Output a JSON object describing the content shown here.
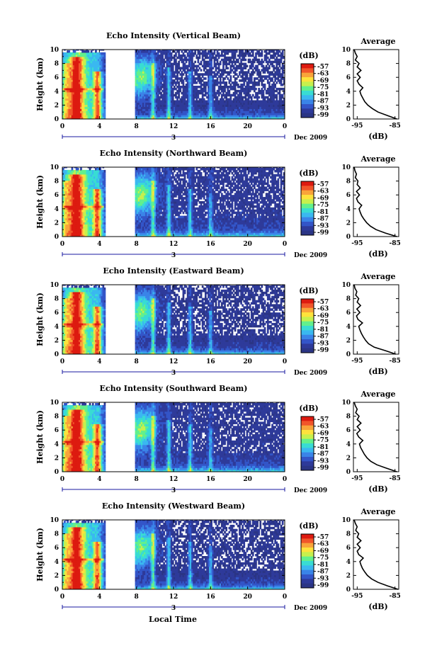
{
  "figure": {
    "xlabel": "Local Time",
    "ylabel": "Height (km)",
    "date_label": "Dec 2009",
    "day_label": "3",
    "avg_title": "Average",
    "avg_xlabel": "(dB)",
    "cbar_title": "(dB)"
  },
  "chart_data": [
    {
      "type": "heatmap",
      "title": "Echo Intensity (Vertical Beam)",
      "xlabel": "",
      "ylabel": "Height (km)",
      "x_ticks": [
        "0",
        "4",
        "8",
        "12",
        "16",
        "20",
        "0"
      ],
      "y_ticks": [
        "0",
        "2",
        "4",
        "6",
        "8",
        "10"
      ],
      "xlim": [
        0,
        24
      ],
      "ylim": [
        0,
        10
      ],
      "colorbar": {
        "label": "(dB)",
        "ticks": [
          "-57",
          "-63",
          "-69",
          "-75",
          "-81",
          "-87",
          "-93",
          "-99"
        ]
      },
      "data_gap_hours": [
        4.5,
        7.8
      ],
      "average_profile": {
        "title": "Average",
        "xlabel": "(dB)",
        "x_ticks": [
          "-95",
          "-85"
        ],
        "xlim": [
          -96,
          -84
        ],
        "ylim": [
          0,
          10
        ],
        "height_km": [
          0,
          0.5,
          1,
          1.5,
          2,
          2.5,
          3,
          3.5,
          4,
          4.5,
          5,
          5.5,
          6,
          6.5,
          7,
          7.5,
          8,
          8.5,
          9,
          9.5,
          10
        ],
        "intensity_db": [
          -84.5,
          -87,
          -89.5,
          -91,
          -92.2,
          -93,
          -93.5,
          -94,
          -94.3,
          -93.5,
          -94.5,
          -95,
          -94.2,
          -95,
          -94,
          -95,
          -94.5,
          -95.5,
          -95,
          -95.5,
          -95.8
        ]
      }
    },
    {
      "type": "heatmap",
      "title": "Echo Intensity (Northward Beam)",
      "xlabel": "",
      "ylabel": "Height (km)",
      "x_ticks": [
        "0",
        "4",
        "8",
        "12",
        "16",
        "20",
        "0"
      ],
      "y_ticks": [
        "0",
        "2",
        "4",
        "6",
        "8",
        "10"
      ],
      "xlim": [
        0,
        24
      ],
      "ylim": [
        0,
        10
      ],
      "colorbar": {
        "label": "(dB)",
        "ticks": [
          "-57",
          "-63",
          "-69",
          "-75",
          "-81",
          "-87",
          "-93",
          "-99"
        ]
      },
      "data_gap_hours": [
        4.5,
        7.8
      ],
      "average_profile": {
        "title": "Average",
        "xlabel": "(dB)",
        "x_ticks": [
          "-95",
          "-85"
        ],
        "xlim": [
          -96,
          -84
        ],
        "ylim": [
          0,
          10
        ],
        "height_km": [
          0,
          0.5,
          1,
          1.5,
          2,
          2.5,
          3,
          3.5,
          4,
          4.5,
          5,
          5.5,
          6,
          6.5,
          7,
          7.5,
          8,
          8.5,
          9,
          9.5,
          10
        ],
        "intensity_db": [
          -84.5,
          -87.5,
          -90,
          -91.5,
          -92.5,
          -93.2,
          -93.8,
          -94.2,
          -94.5,
          -93.8,
          -94.8,
          -95.2,
          -94.4,
          -95.2,
          -94.2,
          -95,
          -94.8,
          -95.5,
          -95.2,
          -95.6,
          -95.8
        ]
      }
    },
    {
      "type": "heatmap",
      "title": "Echo Intensity (Eastward Beam)",
      "xlabel": "",
      "ylabel": "Height (km)",
      "x_ticks": [
        "0",
        "4",
        "8",
        "12",
        "16",
        "20",
        "0"
      ],
      "y_ticks": [
        "0",
        "2",
        "4",
        "6",
        "8",
        "10"
      ],
      "xlim": [
        0,
        24
      ],
      "ylim": [
        0,
        10
      ],
      "colorbar": {
        "label": "(dB)",
        "ticks": [
          "-57",
          "-63",
          "-69",
          "-75",
          "-81",
          "-87",
          "-93",
          "-99"
        ]
      },
      "data_gap_hours": [
        4.5,
        7.8
      ],
      "average_profile": {
        "title": "Average",
        "xlabel": "(dB)",
        "x_ticks": [
          "-95",
          "-85"
        ],
        "xlim": [
          -96,
          -84
        ],
        "ylim": [
          0,
          10
        ],
        "height_km": [
          0,
          0.5,
          1,
          1.5,
          2,
          2.5,
          3,
          3.5,
          4,
          4.5,
          5,
          5.5,
          6,
          6.5,
          7,
          7.5,
          8,
          8.5,
          9,
          9.5,
          10
        ],
        "intensity_db": [
          -84.8,
          -87.5,
          -90.5,
          -92,
          -92.8,
          -93.4,
          -93.9,
          -94.3,
          -94.6,
          -93.6,
          -94.8,
          -95.2,
          -94.3,
          -95.1,
          -94.1,
          -95,
          -94.6,
          -95.4,
          -95.1,
          -95.6,
          -95.8
        ]
      }
    },
    {
      "type": "heatmap",
      "title": "Echo Intensity (Southward Beam)",
      "xlabel": "",
      "ylabel": "Height (km)",
      "x_ticks": [
        "0",
        "4",
        "8",
        "12",
        "16",
        "20",
        "0"
      ],
      "y_ticks": [
        "0",
        "2",
        "4",
        "6",
        "8",
        "10"
      ],
      "xlim": [
        0,
        24
      ],
      "ylim": [
        0,
        10
      ],
      "colorbar": {
        "label": "(dB)",
        "ticks": [
          "-57",
          "-63",
          "-69",
          "-75",
          "-81",
          "-87",
          "-93",
          "-99"
        ]
      },
      "data_gap_hours": [
        4.5,
        7.8
      ],
      "average_profile": {
        "title": "Average",
        "xlabel": "(dB)",
        "x_ticks": [
          "-95",
          "-85"
        ],
        "xlim": [
          -96,
          -84
        ],
        "ylim": [
          0,
          10
        ],
        "height_km": [
          0,
          0.5,
          1,
          1.5,
          2,
          2.5,
          3,
          3.5,
          4,
          4.5,
          5,
          5.5,
          6,
          6.5,
          7,
          7.5,
          8,
          8.5,
          9,
          9.5,
          10
        ],
        "intensity_db": [
          -84.5,
          -87.2,
          -89.8,
          -91.4,
          -92.4,
          -93.1,
          -93.6,
          -94.1,
          -94.4,
          -93.5,
          -94.6,
          -95.1,
          -94.2,
          -95,
          -94,
          -95,
          -94.5,
          -95.4,
          -95,
          -95.5,
          -95.8
        ]
      }
    },
    {
      "type": "heatmap",
      "title": "Echo Intensity (Westward Beam)",
      "xlabel": "Local Time",
      "ylabel": "Height (km)",
      "x_ticks": [
        "0",
        "4",
        "8",
        "12",
        "16",
        "20",
        "0"
      ],
      "y_ticks": [
        "0",
        "2",
        "4",
        "6",
        "8",
        "10"
      ],
      "xlim": [
        0,
        24
      ],
      "ylim": [
        0,
        10
      ],
      "colorbar": {
        "label": "(dB)",
        "ticks": [
          "-57",
          "-63",
          "-69",
          "-75",
          "-81",
          "-87",
          "-93",
          "-99"
        ]
      },
      "data_gap_hours": [
        4.5,
        7.8
      ],
      "average_profile": {
        "title": "Average",
        "xlabel": "(dB)",
        "x_ticks": [
          "-95",
          "-85"
        ],
        "xlim": [
          -96,
          -84
        ],
        "ylim": [
          0,
          10
        ],
        "height_km": [
          0,
          0.5,
          1,
          1.5,
          2,
          2.5,
          3,
          3.5,
          4,
          4.5,
          5,
          5.5,
          6,
          6.5,
          7,
          7.5,
          8,
          8.5,
          9,
          9.5,
          10
        ],
        "intensity_db": [
          -84.2,
          -87,
          -89.5,
          -91.2,
          -92.3,
          -93,
          -93.6,
          -94,
          -94.3,
          -93.4,
          -94.6,
          -95,
          -94.2,
          -95,
          -94,
          -95,
          -94.6,
          -95.4,
          -95,
          -95.5,
          -95.8
        ]
      }
    }
  ],
  "colors": {
    "scale": [
      "#dd1a10",
      "#f1552a",
      "#f9a43a",
      "#fee23c",
      "#c7f04d",
      "#62f08d",
      "#39dcd3",
      "#3ab8f0",
      "#3a84e8",
      "#3355c8",
      "#2e3a9a",
      "#2b3585"
    ],
    "no_data": "#ffffff",
    "axis": "#000000",
    "axis_accent": "#1a1aa0"
  }
}
